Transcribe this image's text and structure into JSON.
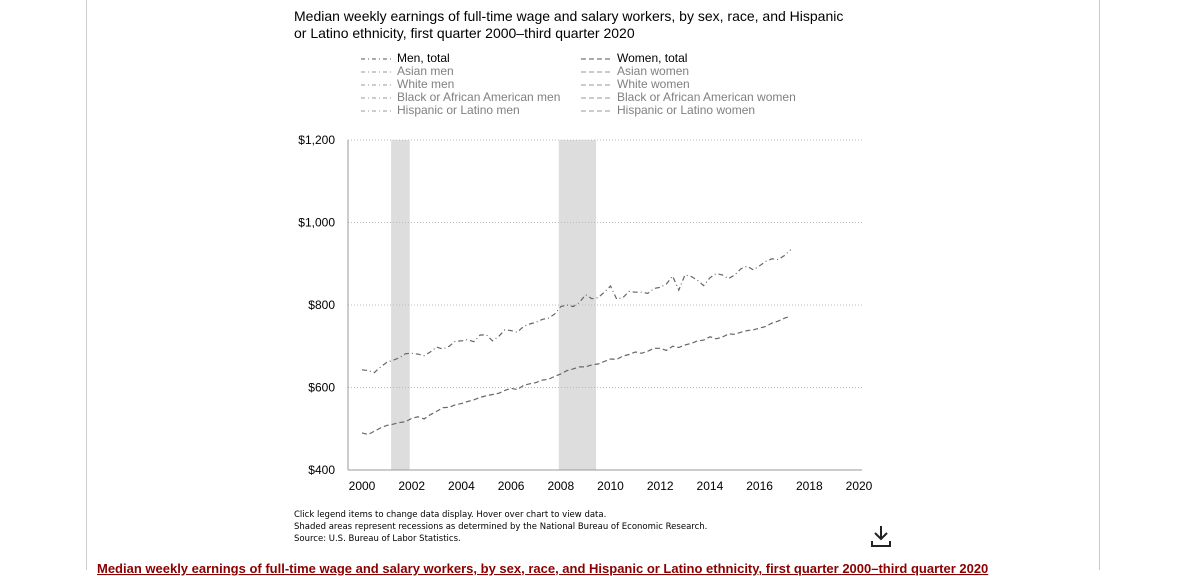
{
  "chart_data": {
    "type": "line",
    "title": "Median weekly earnings of full-time wage and salary workers, by sex, race, and Hispanic or Latino ethnicity, first quarter 2000–third quarter 2020",
    "xlabel": "",
    "ylabel": "",
    "xlim": [
      1999.5,
      2020
    ],
    "ylim": [
      400,
      1200
    ],
    "x_ticks": [
      2000,
      2002,
      2004,
      2006,
      2008,
      2010,
      2012,
      2014,
      2016,
      2018,
      2020
    ],
    "x_tick_labels": [
      "2000",
      "2002",
      "2004",
      "2006",
      "2008",
      "2010",
      "2012",
      "2014",
      "2016",
      "2018",
      "2020"
    ],
    "y_ticks": [
      400,
      600,
      800,
      1000,
      1200
    ],
    "y_tick_labels": [
      "$400",
      "$600",
      "$800",
      "$1,000",
      "$1,200"
    ],
    "grid": true,
    "recessions": [
      {
        "start": 2001.17,
        "end": 2001.92
      },
      {
        "start": 2007.92,
        "end": 2009.42
      }
    ],
    "legend_position": "top",
    "series": [
      {
        "name": "Men, total",
        "group": "men",
        "visible": true,
        "style": "dashdot",
        "x": [
          2000.0,
          2000.25,
          2000.5,
          2000.75,
          2001.0,
          2001.25,
          2001.5,
          2001.75,
          2002.0,
          2002.25,
          2002.5,
          2002.75,
          2003.0,
          2003.25,
          2003.5,
          2003.75,
          2004.0,
          2004.25,
          2004.5,
          2004.75,
          2005.0,
          2005.25,
          2005.5,
          2005.75,
          2006.0,
          2006.25,
          2006.5,
          2006.75,
          2007.0,
          2007.25,
          2007.5,
          2007.75,
          2008.0,
          2008.25,
          2008.5,
          2008.75,
          2009.0,
          2009.25,
          2009.5,
          2009.75,
          2010.0,
          2010.25,
          2010.5,
          2010.75,
          2011.0,
          2011.25,
          2011.5,
          2011.75,
          2012.0,
          2012.25,
          2012.5,
          2012.75,
          2013.0,
          2013.25,
          2013.5,
          2013.75,
          2014.0,
          2014.25,
          2014.5,
          2014.75,
          2015.0,
          2015.25,
          2015.5,
          2015.75,
          2016.0,
          2016.25,
          2016.5,
          2016.75,
          2017.0,
          2017.25
        ],
        "y": [
          643,
          641,
          636,
          650,
          661,
          666,
          672,
          682,
          683,
          681,
          677,
          686,
          698,
          693,
          700,
          712,
          713,
          716,
          711,
          727,
          728,
          713,
          724,
          740,
          738,
          734,
          748,
          754,
          758,
          765,
          768,
          778,
          796,
          800,
          796,
          806,
          825,
          815,
          818,
          831,
          846,
          814,
          818,
          833,
          831,
          831,
          828,
          840,
          843,
          851,
          870,
          836,
          873,
          869,
          860,
          847,
          866,
          876,
          873,
          864,
          873,
          888,
          894,
          885,
          895,
          906,
          912,
          910,
          920,
          934
        ]
      },
      {
        "name": "Asian men",
        "group": "men",
        "visible": false,
        "style": "dashdot",
        "x": [],
        "y": []
      },
      {
        "name": "White men",
        "group": "men",
        "visible": false,
        "style": "dashdot",
        "x": [],
        "y": []
      },
      {
        "name": "Black or African American men",
        "group": "men",
        "visible": false,
        "style": "dashdot",
        "x": [],
        "y": []
      },
      {
        "name": "Hispanic or Latino men",
        "group": "men",
        "visible": false,
        "style": "dashdot",
        "x": [],
        "y": []
      },
      {
        "name": "Women, total",
        "group": "women",
        "visible": true,
        "style": "dash",
        "x": [
          2000.0,
          2000.25,
          2000.5,
          2000.75,
          2001.0,
          2001.25,
          2001.5,
          2001.75,
          2002.0,
          2002.25,
          2002.5,
          2002.75,
          2003.0,
          2003.25,
          2003.5,
          2003.75,
          2004.0,
          2004.25,
          2004.5,
          2004.75,
          2005.0,
          2005.25,
          2005.5,
          2005.75,
          2006.0,
          2006.25,
          2006.5,
          2006.75,
          2007.0,
          2007.25,
          2007.5,
          2007.75,
          2008.0,
          2008.25,
          2008.5,
          2008.75,
          2009.0,
          2009.25,
          2009.5,
          2009.75,
          2010.0,
          2010.25,
          2010.5,
          2010.75,
          2011.0,
          2011.25,
          2011.5,
          2011.75,
          2012.0,
          2012.25,
          2012.5,
          2012.75,
          2013.0,
          2013.25,
          2013.5,
          2013.75,
          2014.0,
          2014.25,
          2014.5,
          2014.75,
          2015.0,
          2015.25,
          2015.5,
          2015.75,
          2016.0,
          2016.25,
          2016.5,
          2016.75,
          2017.0,
          2017.25
        ],
        "y": [
          490,
          486,
          494,
          502,
          508,
          511,
          515,
          517,
          525,
          529,
          524,
          534,
          542,
          551,
          552,
          558,
          561,
          566,
          570,
          576,
          580,
          583,
          586,
          593,
          598,
          595,
          605,
          609,
          612,
          618,
          620,
          627,
          633,
          641,
          645,
          650,
          650,
          655,
          657,
          663,
          669,
          668,
          676,
          680,
          686,
          683,
          688,
          695,
          695,
          690,
          700,
          697,
          703,
          707,
          713,
          715,
          723,
          718,
          722,
          730,
          729,
          734,
          738,
          740,
          744,
          748,
          756,
          761,
          768,
          773
        ]
      },
      {
        "name": "Asian women",
        "group": "women",
        "visible": false,
        "style": "dash",
        "x": [],
        "y": []
      },
      {
        "name": "White women",
        "group": "women",
        "visible": false,
        "style": "dash",
        "x": [],
        "y": []
      },
      {
        "name": "Black or African American women",
        "group": "women",
        "visible": false,
        "style": "dash",
        "x": [],
        "y": []
      },
      {
        "name": "Hispanic or Latino women",
        "group": "women",
        "visible": false,
        "style": "dash",
        "x": [],
        "y": []
      }
    ]
  },
  "notes": [
    "Click legend items to change data display. Hover over chart to view data.",
    "Shaded areas represent recessions as determined by the National Bureau of Economic Research.",
    "Source: U.S. Bureau of Labor Statistics."
  ],
  "download_icon": "download-icon",
  "bottom_caption": "Median weekly earnings of full-time wage and salary workers, by sex, race, and Hispanic or Latino ethnicity, first quarter 2000–third quarter 2020",
  "colors": {
    "line": "#666666",
    "recession_fill": "#dddddd",
    "grid": "#bbbbbb",
    "axis": "#999999",
    "legend_on": "#000000",
    "legend_off": "#808080",
    "caption": "#8b0000"
  }
}
